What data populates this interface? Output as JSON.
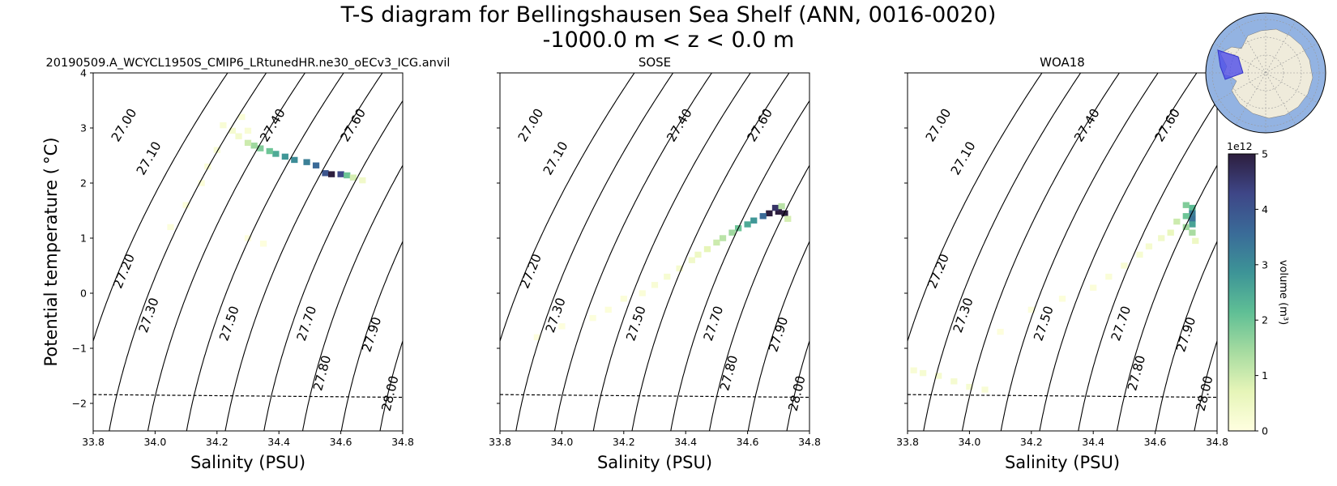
{
  "title_line1": "T-S diagram for Bellingshausen Sea Shelf (ANN, 0016-0020)",
  "title_line2": "-1000.0 m < z < 0.0 m",
  "chart_data": {
    "type": "heatmap",
    "xlabel": "Salinity (PSU)",
    "ylabel": "Potential temperature ( °C)",
    "xlim": [
      33.8,
      34.8
    ],
    "ylim": [
      -2.5,
      4
    ],
    "xticks": [
      "33.8",
      "34.0",
      "34.2",
      "34.4",
      "34.6",
      "34.8"
    ],
    "yticks": [
      "−2",
      "−1",
      "0",
      "1",
      "2",
      "3",
      "4"
    ],
    "freezing_line": [
      [
        33.8,
        -1.84
      ],
      [
        34.8,
        -1.89
      ]
    ],
    "density_contours": [
      {
        "label": "27.00",
        "sigma": 27.0,
        "label_at": [
          33.9,
          3.05
        ]
      },
      {
        "label": "27.10",
        "sigma": 27.1,
        "label_at": [
          33.98,
          2.45
        ]
      },
      {
        "label": "27.20",
        "sigma": 27.2,
        "label_at": [
          33.9,
          0.4
        ]
      },
      {
        "label": "27.30",
        "sigma": 27.3,
        "label_at": [
          33.98,
          -0.4
        ]
      },
      {
        "label": "27.40",
        "sigma": 27.4,
        "label_at": [
          34.38,
          3.05
        ]
      },
      {
        "label": "27.50",
        "sigma": 27.5,
        "label_at": [
          34.24,
          -0.55
        ]
      },
      {
        "label": "27.60",
        "sigma": 27.6,
        "label_at": [
          34.64,
          3.05
        ]
      },
      {
        "label": "27.70",
        "sigma": 27.7,
        "label_at": [
          34.49,
          -0.55
        ]
      },
      {
        "label": "27.80",
        "sigma": 27.8,
        "label_at": [
          34.54,
          -1.45
        ]
      },
      {
        "label": "27.90",
        "sigma": 27.9,
        "label_at": [
          34.7,
          -0.75
        ]
      },
      {
        "label": "28.00",
        "sigma": 28.0,
        "label_at": [
          34.76,
          -1.82
        ]
      }
    ],
    "panels": [
      {
        "title": "20190509.A_WCYCL1950S_CMIP6_LRtunedHR.ne30_oECv3_ICG.anvil",
        "cells": [
          [
            34.49,
            2.38,
            3.2
          ],
          [
            34.52,
            2.32,
            3.6
          ],
          [
            34.45,
            2.42,
            3.0
          ],
          [
            34.42,
            2.48,
            2.8
          ],
          [
            34.39,
            2.53,
            2.5
          ],
          [
            34.37,
            2.58,
            2.0
          ],
          [
            34.34,
            2.63,
            1.8
          ],
          [
            34.32,
            2.68,
            1.5
          ],
          [
            34.3,
            2.73,
            1.0
          ],
          [
            34.55,
            2.18,
            4.0
          ],
          [
            34.57,
            2.16,
            5.0
          ],
          [
            34.6,
            2.16,
            4.2
          ],
          [
            34.62,
            2.14,
            2.0
          ],
          [
            34.64,
            2.1,
            0.9
          ],
          [
            34.67,
            2.05,
            0.4
          ],
          [
            34.27,
            2.85,
            0.35
          ],
          [
            34.25,
            2.95,
            0.3
          ],
          [
            34.22,
            3.05,
            0.2
          ],
          [
            34.2,
            2.6,
            0.2
          ],
          [
            34.17,
            2.3,
            0.15
          ],
          [
            34.15,
            2.0,
            0.12
          ],
          [
            34.1,
            1.6,
            0.1
          ],
          [
            34.05,
            1.2,
            0.08
          ],
          [
            34.3,
            1.0,
            0.06
          ],
          [
            34.35,
            0.9,
            0.06
          ],
          [
            34.28,
            3.2,
            0.15
          ],
          [
            34.3,
            2.95,
            0.2
          ]
        ]
      },
      {
        "title": "SOSE",
        "cells": [
          [
            34.67,
            1.45,
            5.0
          ],
          [
            34.7,
            1.48,
            5.0
          ],
          [
            34.72,
            1.45,
            5.0
          ],
          [
            34.69,
            1.55,
            4.6
          ],
          [
            34.65,
            1.4,
            3.6
          ],
          [
            34.62,
            1.32,
            2.8
          ],
          [
            34.6,
            1.25,
            2.5
          ],
          [
            34.57,
            1.18,
            2.0
          ],
          [
            34.55,
            1.1,
            1.5
          ],
          [
            34.52,
            1.0,
            1.2
          ],
          [
            34.5,
            0.92,
            1.0
          ],
          [
            34.47,
            0.8,
            0.7
          ],
          [
            34.44,
            0.7,
            0.5
          ],
          [
            34.42,
            0.6,
            0.4
          ],
          [
            34.38,
            0.45,
            0.3
          ],
          [
            34.34,
            0.3,
            0.25
          ],
          [
            34.3,
            0.15,
            0.2
          ],
          [
            34.26,
            0.0,
            0.15
          ],
          [
            34.2,
            -0.1,
            0.12
          ],
          [
            34.15,
            -0.3,
            0.1
          ],
          [
            34.1,
            -0.45,
            0.08
          ],
          [
            34.0,
            -0.6,
            0.06
          ],
          [
            33.92,
            -0.8,
            0.05
          ],
          [
            34.73,
            1.35,
            0.9
          ],
          [
            34.71,
            1.58,
            1.2
          ]
        ]
      },
      {
        "title": "WOA18",
        "cells": [
          [
            34.72,
            1.55,
            2.2
          ],
          [
            34.72,
            1.45,
            3.2
          ],
          [
            34.72,
            1.35,
            3.4
          ],
          [
            34.72,
            1.25,
            2.6
          ],
          [
            34.72,
            1.1,
            1.4
          ],
          [
            34.7,
            1.6,
            1.8
          ],
          [
            34.7,
            1.4,
            2.0
          ],
          [
            34.7,
            1.2,
            1.5
          ],
          [
            34.67,
            1.3,
            1.0
          ],
          [
            34.65,
            1.1,
            0.6
          ],
          [
            34.62,
            1.0,
            0.4
          ],
          [
            34.58,
            0.85,
            0.3
          ],
          [
            34.55,
            0.7,
            0.25
          ],
          [
            34.5,
            0.5,
            0.2
          ],
          [
            34.45,
            0.3,
            0.15
          ],
          [
            34.4,
            0.1,
            0.12
          ],
          [
            34.3,
            -0.1,
            0.1
          ],
          [
            34.2,
            -0.3,
            0.08
          ],
          [
            34.1,
            -0.7,
            0.07
          ],
          [
            33.85,
            -1.45,
            0.25
          ],
          [
            33.9,
            -1.5,
            0.3
          ],
          [
            33.95,
            -1.6,
            0.28
          ],
          [
            34.0,
            -1.7,
            0.25
          ],
          [
            34.05,
            -1.75,
            0.2
          ],
          [
            33.82,
            -1.4,
            0.2
          ],
          [
            34.73,
            0.95,
            0.5
          ]
        ]
      }
    ],
    "colorbar": {
      "label": "volume (m³)",
      "scale_label": "1e12",
      "min": 0,
      "max": 5,
      "ticks": [
        "0",
        "1",
        "2",
        "3",
        "4",
        "5"
      ],
      "colors": [
        "#ffffe0",
        "#e6f5b8",
        "#a6dba0",
        "#5fbf95",
        "#3d9497",
        "#3a6b98",
        "#3e4687",
        "#2d1e3e"
      ]
    }
  },
  "colors": {
    "ocean": "#93b3e2",
    "land": "#efebdb",
    "region": "#4f4ee8"
  }
}
